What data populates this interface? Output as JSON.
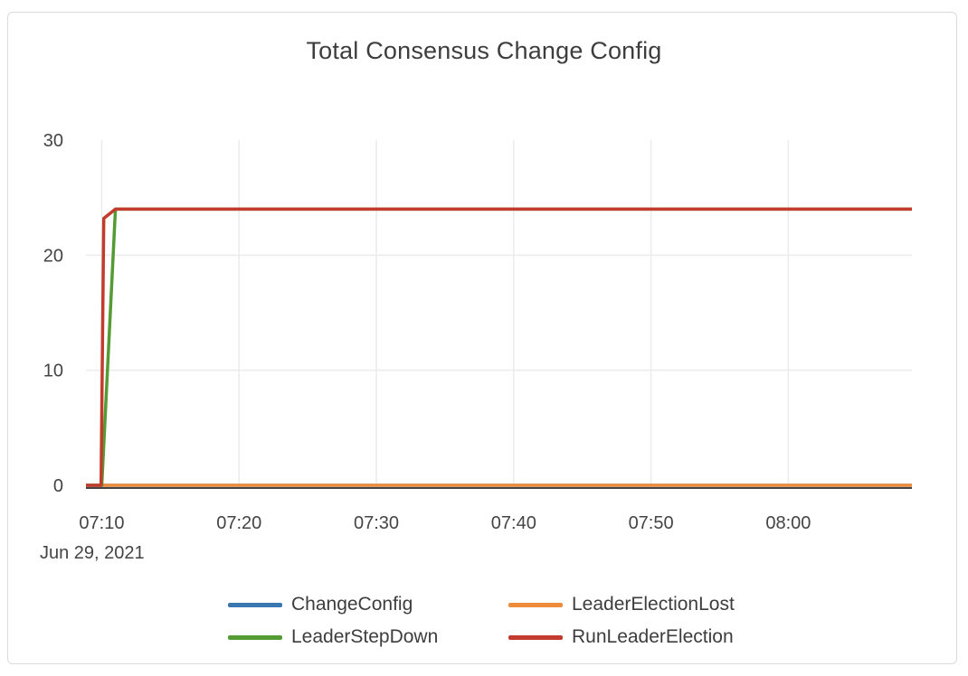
{
  "card": {
    "title": "Total Consensus Change Config"
  },
  "colors": {
    "blue": "#3a76b0",
    "orange": "#ee8c3b",
    "green": "#549b34",
    "red": "#c33b2d",
    "grid": "#ececec",
    "axis_line": "#444444",
    "tick_text": "#444444",
    "title_text": "#3d3d3d",
    "card_border": "#dbdbdb"
  },
  "chart_data": {
    "type": "line",
    "title": "Total Consensus Change Config",
    "xlabel": "",
    "ylabel": "",
    "x_axis": {
      "kind": "time",
      "date_label": "Jun 29, 2021",
      "tick_labels": [
        "07:10",
        "07:20",
        "07:30",
        "07:40",
        "07:50",
        "08:00"
      ],
      "tick_minutes": [
        10,
        20,
        30,
        40,
        50,
        60
      ],
      "range_minutes": [
        8.85,
        69
      ]
    },
    "y_axis": {
      "tick_labels": [
        "0",
        "10",
        "20",
        "30"
      ],
      "tick_values": [
        0,
        10,
        20,
        30
      ],
      "range": [
        0,
        30
      ]
    },
    "grid": true,
    "legend_position": "bottom",
    "plateau_value": 24,
    "series": [
      {
        "name": "ChangeConfig",
        "color_key": "blue",
        "points": [
          [
            8.85,
            0
          ],
          [
            69,
            0
          ]
        ]
      },
      {
        "name": "LeaderElectionLost",
        "color_key": "orange",
        "points": [
          [
            8.85,
            0
          ],
          [
            69,
            0
          ]
        ]
      },
      {
        "name": "LeaderStepDown",
        "color_key": "green",
        "points": [
          [
            8.85,
            0
          ],
          [
            10,
            0
          ],
          [
            11,
            24
          ],
          [
            69,
            24
          ]
        ]
      },
      {
        "name": "RunLeaderElection",
        "color_key": "red",
        "points": [
          [
            8.85,
            0
          ],
          [
            9.95,
            0
          ],
          [
            10.15,
            23.2
          ],
          [
            11,
            24
          ],
          [
            69,
            24
          ]
        ]
      }
    ],
    "legend": [
      {
        "label": "ChangeConfig",
        "color_key": "blue"
      },
      {
        "label": "LeaderElectionLost",
        "color_key": "orange"
      },
      {
        "label": "LeaderStepDown",
        "color_key": "green"
      },
      {
        "label": "RunLeaderElection",
        "color_key": "red"
      }
    ]
  }
}
